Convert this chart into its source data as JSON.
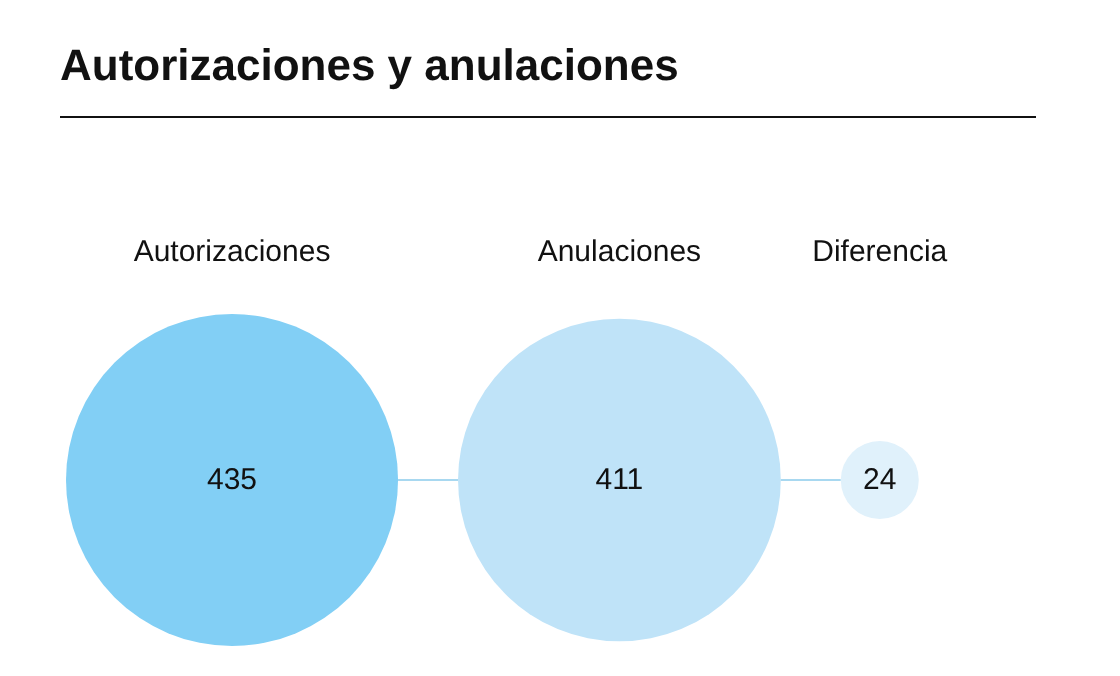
{
  "chart_data": {
    "type": "other",
    "title": "Autorizaciones y anulaciones",
    "categories": [
      "Autorizaciones",
      "Anulaciones",
      "Diferencia"
    ],
    "values": [
      435,
      411,
      24
    ],
    "colors": [
      "#82cff5",
      "#bfe3f8",
      "#e0f1fb"
    ],
    "data_labels": true
  }
}
